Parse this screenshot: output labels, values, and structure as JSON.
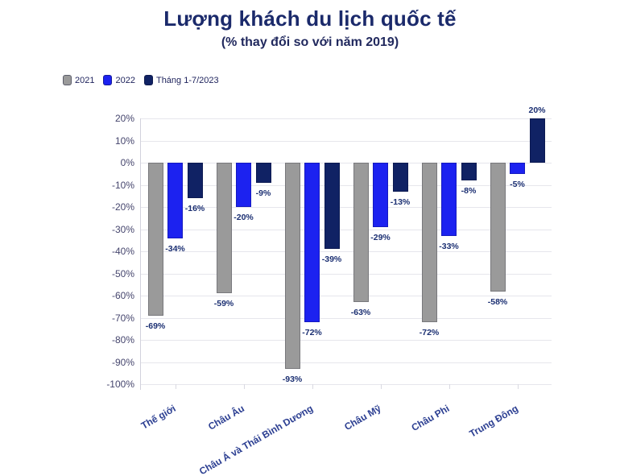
{
  "header": {
    "title": "Lượng khách du lịch quốc tế",
    "subtitle": "(% thay đổi so với năm 2019)"
  },
  "colors": {
    "series_2021": "#9a9a9a",
    "series_2022": "#1c22f0",
    "series_2023": "#102264",
    "title_text": "#1b2a6b",
    "value_label_text": "#1b2f72",
    "category_label_text": "#2c3f92",
    "axis_tick_text": "#45456d",
    "grid_line": "#e6e6ec",
    "background": "#ffffff"
  },
  "chart_data": {
    "type": "bar",
    "title": "Lượng khách du lịch quốc tế",
    "subtitle": "(% thay đổi so với năm 2019)",
    "categories": [
      "Thế giới",
      "Châu Âu",
      "Châu Á và Thái Bình Dương",
      "Châu Mỹ",
      "Châu Phi",
      "Trung Đông"
    ],
    "series": [
      {
        "name": "2021",
        "color": "#9a9a9a",
        "values": [
          -69,
          -59,
          -93,
          -63,
          -72,
          -58
        ]
      },
      {
        "name": "2022",
        "color": "#1c22f0",
        "values": [
          -34,
          -20,
          -72,
          -29,
          -33,
          -5
        ]
      },
      {
        "name": "Tháng 1-7/2023",
        "color": "#102264",
        "values": [
          -16,
          -9,
          -39,
          -13,
          -8,
          20
        ]
      }
    ],
    "value_label_suffix": "%",
    "xlabel": "",
    "ylabel": "",
    "ylim": [
      -100,
      20
    ],
    "y_tick_step": 10,
    "y_tick_labels": [
      "20%",
      "10%",
      "0%",
      "-10%",
      "-20%",
      "-30%",
      "-40%",
      "-50%",
      "-60%",
      "-70%",
      "-80%",
      "-90%",
      "-100%"
    ],
    "grid": true,
    "legend_position": "top-left"
  }
}
